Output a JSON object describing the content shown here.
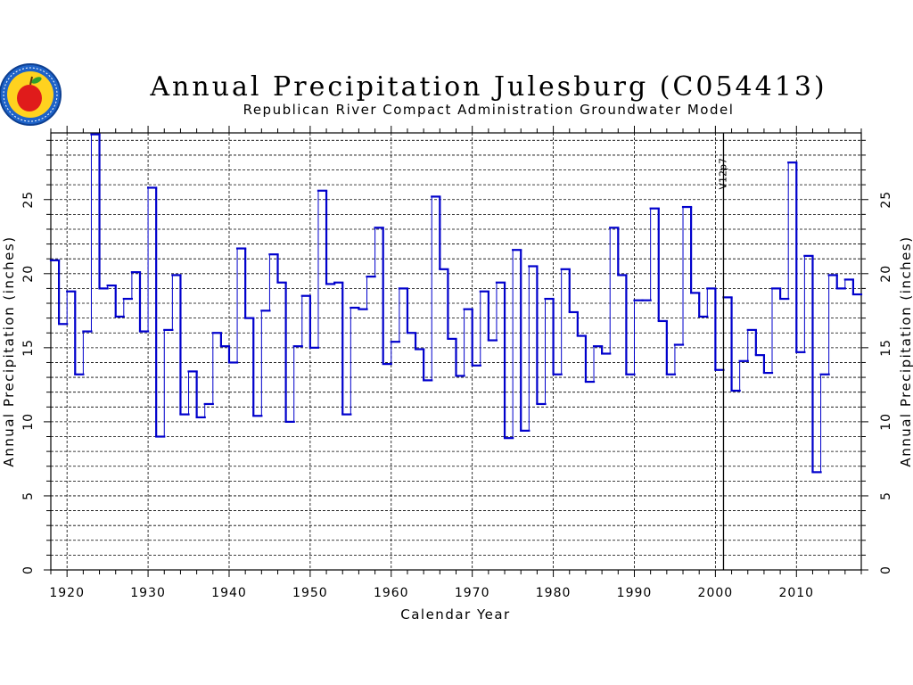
{
  "chart_data": {
    "type": "line",
    "title": "Annual Precipitation Julesburg (C054413)",
    "subtitle": "Republican River Compact Administration Groundwater Model",
    "xlabel": "Calendar Year",
    "ylabel": "Annual Precipitation (inches)",
    "xlim": [
      1918,
      2018
    ],
    "ylim": [
      0,
      29.5
    ],
    "xticks": [
      1920,
      1930,
      1940,
      1950,
      1960,
      1970,
      1980,
      1990,
      2000,
      2010
    ],
    "yticks": [
      0,
      5,
      10,
      15,
      20,
      25
    ],
    "grid": true,
    "annotation": {
      "label": "V12p7",
      "x": 2001
    },
    "series": [
      {
        "color": "#0000cc",
        "x": [
          1918,
          1919,
          1920,
          1921,
          1922,
          1923,
          1924,
          1925,
          1926,
          1927,
          1928,
          1929,
          1930,
          1931,
          1932,
          1933,
          1934,
          1935,
          1936,
          1937,
          1938,
          1939,
          1940,
          1941,
          1942,
          1943,
          1944,
          1945,
          1946,
          1947,
          1948,
          1949,
          1950,
          1951,
          1952,
          1953,
          1954,
          1955,
          1956,
          1957,
          1958,
          1959,
          1960,
          1961,
          1962,
          1963,
          1964,
          1965,
          1966,
          1967,
          1968,
          1969,
          1970,
          1971,
          1972,
          1973,
          1974,
          1975,
          1976,
          1977,
          1978,
          1979,
          1980,
          1981,
          1982,
          1983,
          1984,
          1985,
          1986,
          1987,
          1988,
          1989,
          1990,
          1991,
          1992,
          1993,
          1994,
          1995,
          1996,
          1997,
          1998,
          1999,
          2000,
          2001,
          2002,
          2003,
          2004,
          2005,
          2006,
          2007,
          2008,
          2009,
          2010,
          2011,
          2012,
          2013,
          2014,
          2015,
          2016,
          2017
        ],
        "values": [
          20.9,
          16.6,
          18.8,
          13.2,
          16.1,
          29.4,
          19.0,
          19.2,
          17.1,
          18.3,
          20.1,
          16.1,
          25.8,
          9.0,
          16.2,
          19.9,
          10.5,
          13.4,
          10.3,
          11.2,
          16.0,
          15.1,
          14.0,
          21.7,
          17.0,
          10.4,
          17.5,
          21.3,
          19.4,
          10.0,
          15.1,
          18.5,
          15.0,
          25.6,
          19.3,
          19.4,
          10.5,
          17.7,
          17.6,
          19.8,
          23.1,
          13.9,
          15.4,
          19.0,
          16.0,
          14.9,
          12.8,
          25.2,
          20.3,
          15.6,
          13.1,
          17.6,
          13.8,
          18.8,
          15.5,
          19.4,
          8.9,
          21.6,
          9.4,
          20.5,
          11.2,
          18.3,
          13.2,
          20.3,
          17.4,
          15.8,
          12.7,
          15.1,
          14.6,
          23.1,
          19.9,
          13.2,
          18.2,
          18.2,
          24.4,
          16.8,
          13.2,
          15.2,
          24.5,
          18.7,
          17.1,
          19.0,
          13.5,
          18.4,
          12.1,
          14.1,
          16.2,
          14.5,
          13.3,
          19.0,
          18.3,
          27.5,
          14.7,
          21.2,
          6.6,
          13.2,
          19.9,
          19.0,
          19.6,
          18.6
        ]
      }
    ]
  },
  "logo": {
    "name": "rrca-apple-seal",
    "ring_text": "REPUBLICAN RIVER COMPACT",
    "colors": {
      "ring": "#1e63c8",
      "inner": "#ffd21f",
      "apple": "#e01b1b",
      "leaf": "#2e9e2e"
    }
  },
  "colors": {
    "series": "#0000cc",
    "grid": "#000000",
    "frame": "#000000"
  }
}
